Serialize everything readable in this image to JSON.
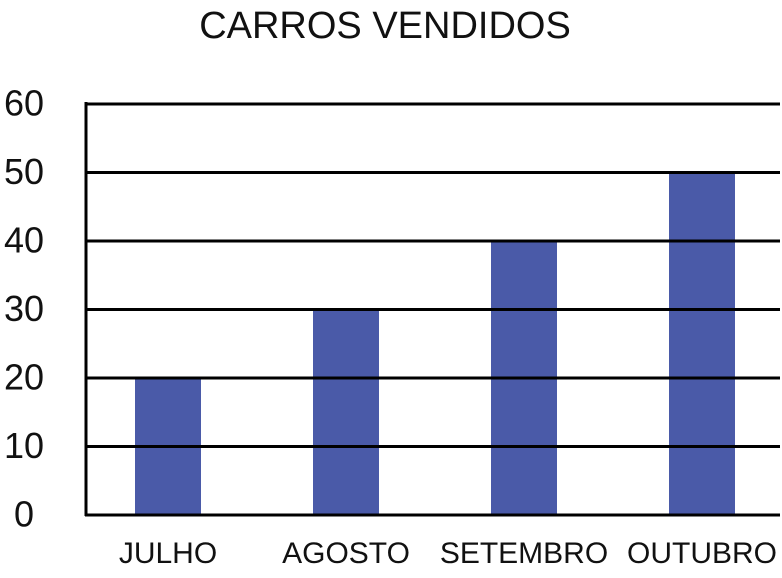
{
  "chart_data": {
    "type": "bar",
    "title": "CARROS VENDIDOS",
    "categories": [
      "JULHO",
      "AGOSTO",
      "SETEMBRO",
      "OUTUBRO"
    ],
    "values": [
      20,
      30,
      40,
      50
    ],
    "color": "#4a5aa8",
    "ylim": [
      0,
      60
    ],
    "yticks": [
      0,
      10,
      20,
      30,
      40,
      50,
      60
    ],
    "grid": true
  }
}
